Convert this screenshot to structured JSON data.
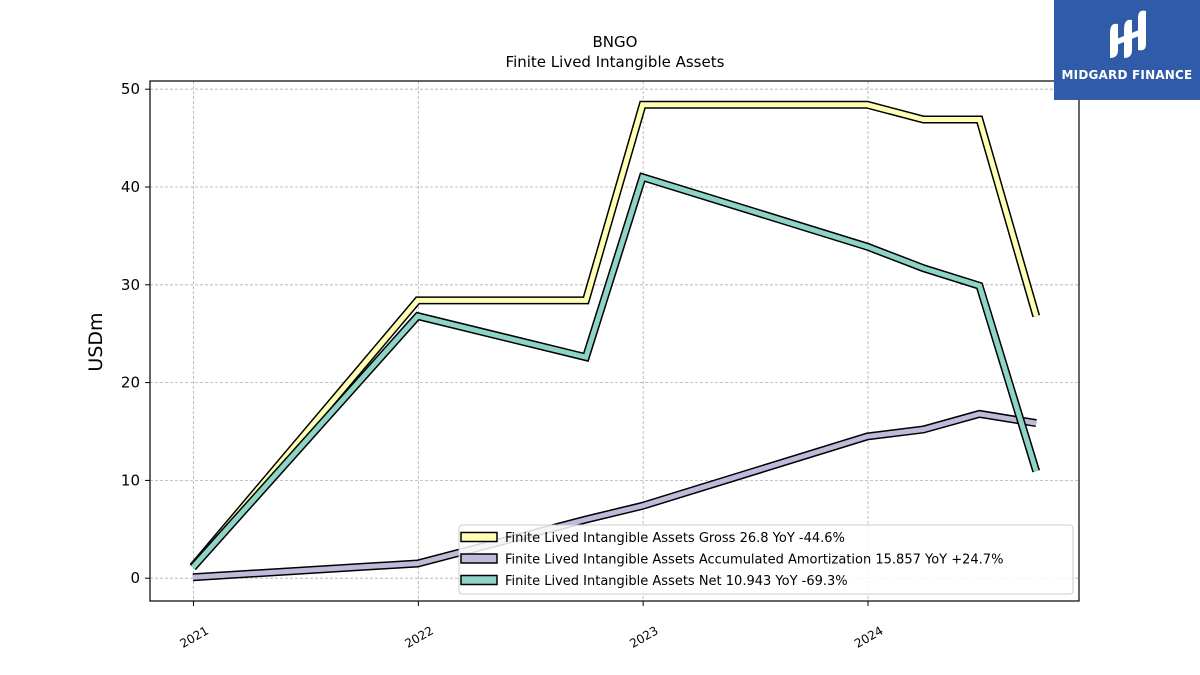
{
  "chart_data": {
    "type": "line",
    "title": "BNGO",
    "subtitle": "Finite Lived Intangible Assets",
    "xlabel": "",
    "ylabel": "USDm",
    "ylim": [
      -2.2,
      50.9
    ],
    "yticks": [
      0,
      10,
      20,
      30,
      40,
      50
    ],
    "xticks": [
      "2021",
      "2022",
      "2023",
      "2024"
    ],
    "grid": true,
    "legend_position": "lower-right",
    "x": [
      "2020-12-31",
      "2021-12-31",
      "2022-09-30",
      "2022-12-31",
      "2023-12-31",
      "2024-03-31",
      "2024-06-30",
      "2024-09-30"
    ],
    "series": [
      {
        "name": "Finite Lived Intangible Assets Gross  26.8 YoY -44.6%",
        "color": "#ffffb3",
        "values": [
          1.2,
          28.4,
          28.4,
          48.4,
          48.4,
          46.9,
          46.9,
          26.8
        ]
      },
      {
        "name": "Finite Lived Intangible Assets Accumulated Amortization  15.857 YoY +24.7%",
        "color": "#bebada",
        "values": [
          0.1,
          1.5,
          6.0,
          7.4,
          14.5,
          15.2,
          16.8,
          15.857
        ]
      },
      {
        "name": "Finite Lived Intangible Assets Net  10.943 YoY -69.3%",
        "color": "#8dd3c7",
        "values": [
          1.1,
          26.8,
          22.6,
          41.0,
          33.9,
          31.7,
          29.9,
          10.943
        ]
      }
    ]
  },
  "logo": {
    "text": "MIDGARD FINANCE",
    "color": "#2f5ba8"
  }
}
